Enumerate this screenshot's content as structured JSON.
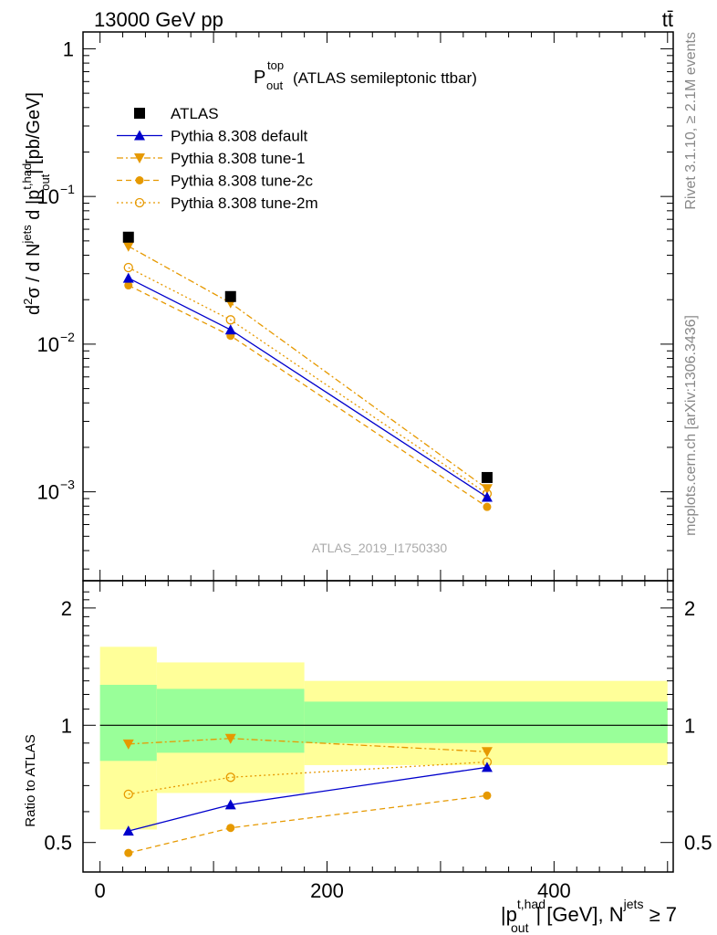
{
  "header": {
    "energy_label": "13000 GeV pp",
    "process_label": "tt̄"
  },
  "side_labels": {
    "rivet": "Rivet 3.1.10, ≥ 2.1M events",
    "mcplots": "mcplots.cern.ch [arXiv:1306.3436]"
  },
  "analysis_id": "ATLAS_2019_I1750330",
  "colors": {
    "data": "#000000",
    "default": "#0000cc",
    "tunes": "#e69900",
    "band_inner": "#99ff99",
    "band_outer": "#ffff99"
  },
  "chart_data": [
    {
      "type": "line",
      "title_main": "P",
      "title_sup": "top",
      "title_sub": "out",
      "title_rest": "(ATLAS semileptonic ttbar)",
      "ylabel": "d²σ / d N^jets d |p_out^t,had| [pb/GeV]",
      "ylabel_parts": {
        "a": "d",
        "a_sup": "2",
        "b": "σ / d N",
        "b_sup": "jets",
        "c": " d |p",
        "c_sup": "t,had",
        "c_sub": "out",
        "d": "| [pb/GeV]"
      },
      "yscale": "log",
      "ylim": [
        0.00025,
        1.3
      ],
      "y_ticks": [
        {
          "value": 1,
          "label": "1"
        },
        {
          "value": 0.1,
          "base": "10",
          "exp": "−1"
        },
        {
          "value": 0.01,
          "base": "10",
          "exp": "−2"
        },
        {
          "value": 0.001,
          "base": "10",
          "exp": "−3"
        }
      ],
      "xlim": [
        -15,
        505
      ],
      "x": [
        25,
        115,
        341
      ],
      "bin_edges": [
        0,
        50,
        180,
        500
      ],
      "legend_position": "top-left",
      "series": [
        {
          "name": "ATLAS",
          "values": [
            0.053,
            0.021,
            0.00125
          ],
          "marker": "square",
          "line": "none",
          "color": "#000000"
        },
        {
          "name": "Pythia 8.308 default",
          "values": [
            0.028,
            0.0125,
            0.00092
          ],
          "marker": "triangle-up",
          "line": "solid",
          "color": "#0000cc"
        },
        {
          "name": "Pythia 8.308 tune-1",
          "values": [
            0.046,
            0.019,
            0.00105
          ],
          "marker": "triangle-down",
          "line": "dashdot",
          "color": "#e69900"
        },
        {
          "name": "Pythia 8.308 tune-2c",
          "values": [
            0.025,
            0.0114,
            0.00079
          ],
          "marker": "circle",
          "line": "dashed",
          "color": "#e69900"
        },
        {
          "name": "Pythia 8.308 tune-2m",
          "values": [
            0.033,
            0.0146,
            0.00097
          ],
          "marker": "circle-open",
          "line": "dotted",
          "color": "#e69900"
        }
      ]
    },
    {
      "type": "line",
      "ylabel": "Ratio to ATLAS",
      "yscale": "log",
      "ylim": [
        0.42,
        2.35
      ],
      "y_ticks": [
        {
          "value": 0.5,
          "label": "0.5"
        },
        {
          "value": 1,
          "label": "1"
        },
        {
          "value": 2,
          "label": "2"
        }
      ],
      "xlim": [
        -15,
        505
      ],
      "x_ticks": [
        {
          "value": 0,
          "label": "0"
        },
        {
          "value": 200,
          "label": "200"
        },
        {
          "value": 400,
          "label": "400"
        }
      ],
      "xlabel_parts": {
        "a": "|p",
        "a_sup": "t,had",
        "a_sub": "out",
        "b": "| [GeV], N",
        "b_sup": "jets",
        "c": " ≥ 7"
      },
      "x": [
        25,
        115,
        341
      ],
      "bands": [
        {
          "x0": 0,
          "x1": 50,
          "outer": [
            0.54,
            1.59
          ],
          "inner": [
            0.81,
            1.27
          ]
        },
        {
          "x0": 50,
          "x1": 180,
          "outer": [
            0.67,
            1.45
          ],
          "inner": [
            0.85,
            1.24
          ]
        },
        {
          "x0": 180,
          "x1": 500,
          "outer": [
            0.79,
            1.3
          ],
          "inner": [
            0.9,
            1.15
          ]
        }
      ],
      "series": [
        {
          "name": "Pythia 8.308 default",
          "values": [
            0.535,
            0.625,
            0.78
          ],
          "marker": "triangle-up",
          "line": "solid",
          "color": "#0000cc"
        },
        {
          "name": "Pythia 8.308 tune-1",
          "values": [
            0.895,
            0.925,
            0.855
          ],
          "marker": "triangle-down",
          "line": "dashdot",
          "color": "#e69900"
        },
        {
          "name": "Pythia 8.308 tune-2c",
          "values": [
            0.47,
            0.545,
            0.66
          ],
          "marker": "circle",
          "line": "dashed",
          "color": "#e69900"
        },
        {
          "name": "Pythia 8.308 tune-2m",
          "values": [
            0.665,
            0.735,
            0.805
          ],
          "marker": "circle-open",
          "line": "dotted",
          "color": "#e69900"
        }
      ]
    }
  ]
}
